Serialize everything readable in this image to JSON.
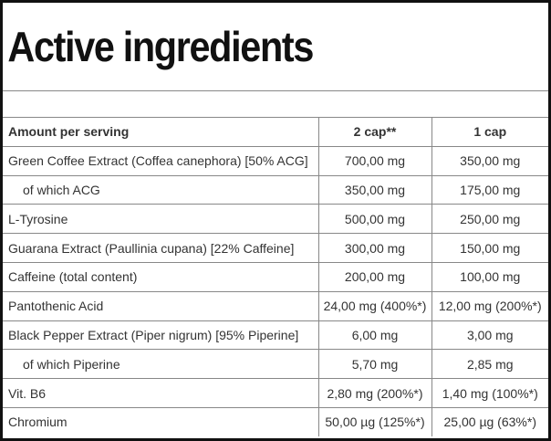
{
  "title": "Active ingredients",
  "table": {
    "header": [
      "Amount per serving",
      "2 cap**",
      "1 cap"
    ],
    "rows": [
      [
        "Green Coffee Extract (Coffea canephora) [50% ACG]",
        "700,00 mg",
        "350,00 mg"
      ],
      [
        "of which ACG",
        "350,00 mg",
        "175,00 mg"
      ],
      [
        "L-Tyrosine",
        "500,00 mg",
        "250,00 mg"
      ],
      [
        "Guarana Extract (Paullinia cupana) [22% Caffeine]",
        "300,00 mg",
        "150,00 mg"
      ],
      [
        "Caffeine (total content)",
        "200,00 mg",
        "100,00 mg"
      ],
      [
        "Pantothenic Acid",
        "24,00 mg (400%*)",
        "12,00 mg (200%*)"
      ],
      [
        "Black Pepper Extract (Piper nigrum) [95% Piperine]",
        "6,00 mg",
        "3,00 mg"
      ],
      [
        "of which Piperine",
        "5,70 mg",
        "2,85 mg"
      ],
      [
        "Vit. B6",
        "2,80 mg (200%*)",
        "1,40 mg (100%*)"
      ],
      [
        "Chromium",
        "50,00 µg (125%*)",
        "25,00 µg (63%*)"
      ]
    ]
  }
}
